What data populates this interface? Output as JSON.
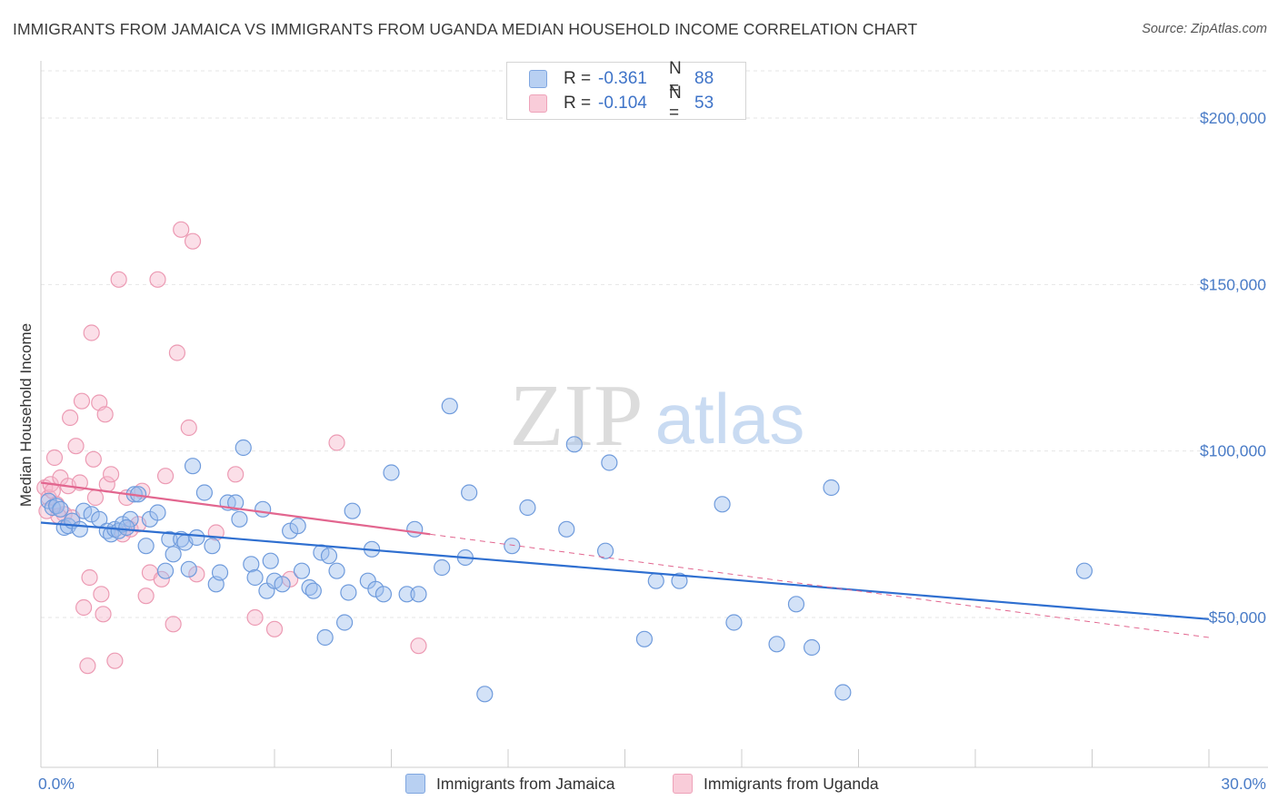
{
  "header": {
    "title": "IMMIGRANTS FROM JAMAICA VS IMMIGRANTS FROM UGANDA MEDIAN HOUSEHOLD INCOME CORRELATION CHART",
    "source": "Source: ZipAtlas.com"
  },
  "legend": {
    "r_label": "R =",
    "n_label": "N =",
    "rows": [
      {
        "r": "-0.361",
        "n": "88"
      },
      {
        "r": "-0.104",
        "n": "53"
      }
    ]
  },
  "watermark": {
    "zip": "ZIP",
    "atlas": "atlas"
  },
  "chart_data": {
    "type": "scatter",
    "title": "IMMIGRANTS FROM JAMAICA VS IMMIGRANTS FROM UGANDA MEDIAN HOUSEHOLD INCOME CORRELATION CHART",
    "xlabel": "",
    "ylabel": "Median Household Income",
    "xlim": [
      0,
      30
    ],
    "ylim": [
      5000,
      215000
    ],
    "x_tick_labels": [
      "0.0%",
      "30.0%"
    ],
    "y_ticks": [
      50000,
      100000,
      150000,
      200000
    ],
    "y_tick_labels": [
      "$50,000",
      "$100,000",
      "$150,000",
      "$200,000"
    ],
    "grid": true,
    "legend_position": "bottom",
    "colors": {
      "jamaica": "#9dbfee",
      "jamaica_line": "#2f6fd0",
      "uganda": "#f6b8cb",
      "uganda_line": "#e2668f"
    },
    "series": [
      {
        "name": "Immigrants from Jamaica",
        "r": -0.361,
        "n": 88,
        "trend": {
          "x": [
            0,
            30
          ],
          "y": [
            78500,
            49500
          ]
        },
        "points": [
          [
            0.2,
            85000
          ],
          [
            0.3,
            83000
          ],
          [
            0.4,
            83500
          ],
          [
            0.5,
            82500
          ],
          [
            0.6,
            77000
          ],
          [
            0.7,
            77500
          ],
          [
            0.8,
            79000
          ],
          [
            1.0,
            76500
          ],
          [
            1.1,
            82000
          ],
          [
            1.3,
            81000
          ],
          [
            1.5,
            79500
          ],
          [
            1.7,
            76000
          ],
          [
            1.8,
            75000
          ],
          [
            1.9,
            76500
          ],
          [
            2.0,
            76000
          ],
          [
            2.1,
            78000
          ],
          [
            2.3,
            79500
          ],
          [
            2.4,
            87000
          ],
          [
            2.5,
            87000
          ],
          [
            2.7,
            71500
          ],
          [
            2.8,
            79500
          ],
          [
            3.0,
            81500
          ],
          [
            3.2,
            64000
          ],
          [
            3.3,
            73500
          ],
          [
            3.4,
            69000
          ],
          [
            3.6,
            73500
          ],
          [
            3.7,
            72500
          ],
          [
            3.8,
            64500
          ],
          [
            3.9,
            95500
          ],
          [
            4.0,
            74000
          ],
          [
            4.2,
            87500
          ],
          [
            4.4,
            71500
          ],
          [
            4.5,
            60000
          ],
          [
            4.6,
            63500
          ],
          [
            4.8,
            84500
          ],
          [
            5.0,
            84500
          ],
          [
            5.1,
            79500
          ],
          [
            5.2,
            101000
          ],
          [
            5.4,
            66000
          ],
          [
            5.5,
            62000
          ],
          [
            5.7,
            82500
          ],
          [
            5.8,
            58000
          ],
          [
            5.9,
            67000
          ],
          [
            6.0,
            61000
          ],
          [
            6.2,
            60000
          ],
          [
            6.4,
            76000
          ],
          [
            6.6,
            77500
          ],
          [
            6.7,
            64000
          ],
          [
            6.9,
            59000
          ],
          [
            7.0,
            58000
          ],
          [
            7.2,
            69500
          ],
          [
            7.3,
            44000
          ],
          [
            7.4,
            68500
          ],
          [
            7.6,
            64000
          ],
          [
            7.8,
            48500
          ],
          [
            7.9,
            57500
          ],
          [
            8.0,
            82000
          ],
          [
            8.4,
            61000
          ],
          [
            8.5,
            70500
          ],
          [
            8.6,
            58500
          ],
          [
            8.8,
            57000
          ],
          [
            9.0,
            93500
          ],
          [
            9.4,
            57000
          ],
          [
            9.6,
            76500
          ],
          [
            9.7,
            57000
          ],
          [
            10.3,
            65000
          ],
          [
            10.5,
            113500
          ],
          [
            10.9,
            68000
          ],
          [
            11.0,
            87500
          ],
          [
            11.4,
            27000
          ],
          [
            12.1,
            71500
          ],
          [
            12.5,
            83000
          ],
          [
            13.5,
            76500
          ],
          [
            13.7,
            102000
          ],
          [
            14.5,
            70000
          ],
          [
            14.6,
            96500
          ],
          [
            15.5,
            43500
          ],
          [
            15.8,
            61000
          ],
          [
            16.4,
            61000
          ],
          [
            17.5,
            84000
          ],
          [
            17.8,
            48500
          ],
          [
            18.9,
            42000
          ],
          [
            19.4,
            54000
          ],
          [
            19.8,
            41000
          ],
          [
            20.3,
            89000
          ],
          [
            20.6,
            27500
          ],
          [
            26.8,
            64000
          ],
          [
            2.2,
            77000
          ]
        ]
      },
      {
        "name": "Immigrants from Uganda",
        "r": -0.104,
        "n": 53,
        "trend": {
          "x": [
            0,
            10
          ],
          "y": [
            90500,
            75000
          ]
        },
        "trend_ext": {
          "x": [
            10,
            30
          ],
          "y": [
            75000,
            44000
          ]
        },
        "points": [
          [
            0.1,
            89000
          ],
          [
            0.2,
            86000
          ],
          [
            0.25,
            90000
          ],
          [
            0.3,
            88000
          ],
          [
            0.35,
            98000
          ],
          [
            0.4,
            84000
          ],
          [
            0.5,
            92000
          ],
          [
            0.6,
            81000
          ],
          [
            0.7,
            89500
          ],
          [
            0.75,
            110000
          ],
          [
            0.8,
            80000
          ],
          [
            0.9,
            101500
          ],
          [
            1.0,
            90500
          ],
          [
            1.05,
            115000
          ],
          [
            1.1,
            53000
          ],
          [
            1.2,
            35500
          ],
          [
            1.25,
            62000
          ],
          [
            1.3,
            135500
          ],
          [
            1.35,
            97500
          ],
          [
            1.4,
            86000
          ],
          [
            1.5,
            114500
          ],
          [
            1.55,
            57000
          ],
          [
            1.6,
            51000
          ],
          [
            1.65,
            111000
          ],
          [
            1.7,
            90000
          ],
          [
            1.8,
            93000
          ],
          [
            1.9,
            37000
          ],
          [
            2.0,
            151500
          ],
          [
            2.1,
            75000
          ],
          [
            2.2,
            86000
          ],
          [
            2.3,
            76500
          ],
          [
            2.5,
            78000
          ],
          [
            2.6,
            88000
          ],
          [
            2.7,
            56500
          ],
          [
            2.8,
            63500
          ],
          [
            3.0,
            151500
          ],
          [
            3.1,
            61500
          ],
          [
            3.2,
            92500
          ],
          [
            3.4,
            48000
          ],
          [
            3.5,
            129500
          ],
          [
            3.6,
            166500
          ],
          [
            3.8,
            107000
          ],
          [
            3.9,
            163000
          ],
          [
            4.0,
            63000
          ],
          [
            4.5,
            75500
          ],
          [
            5.0,
            93000
          ],
          [
            5.5,
            50000
          ],
          [
            6.0,
            46500
          ],
          [
            6.4,
            61500
          ],
          [
            7.6,
            102500
          ],
          [
            9.7,
            41500
          ],
          [
            0.45,
            80500
          ],
          [
            0.15,
            82000
          ]
        ]
      }
    ]
  }
}
